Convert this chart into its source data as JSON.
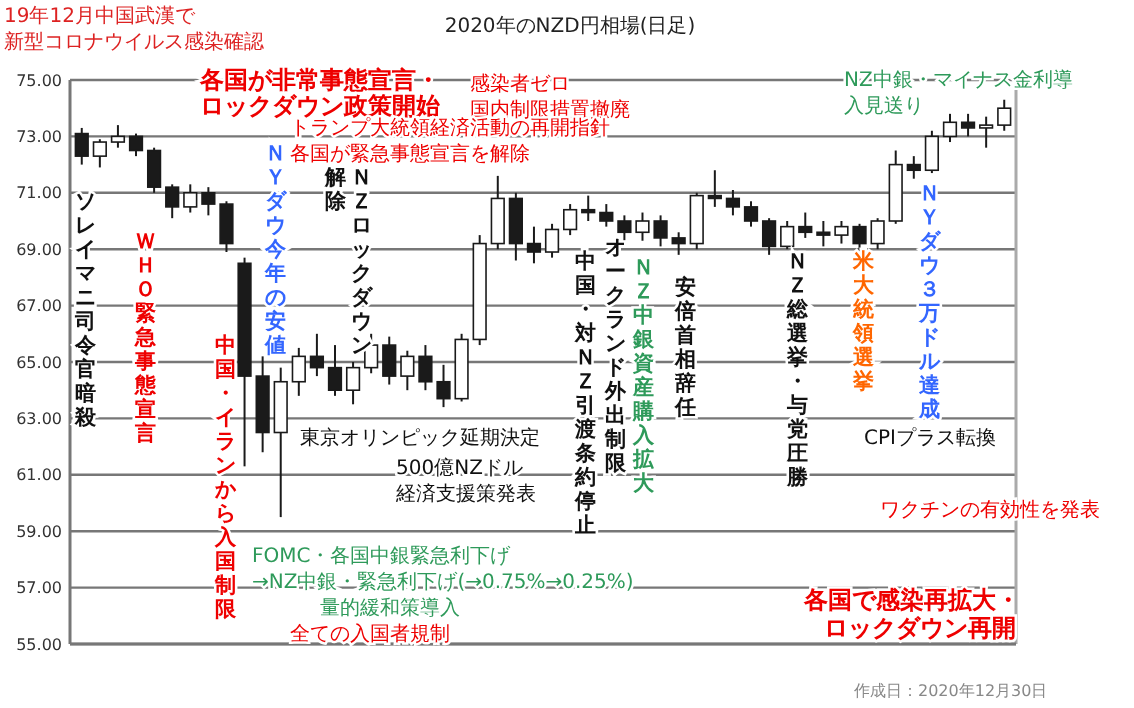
{
  "chart_data": {
    "type": "candlestick",
    "title": "2020年のNZD円相場(日足)",
    "color": "#1a1a1a",
    "grid": "y",
    "ylim": [
      55,
      75
    ],
    "yticks": [
      {
        "value": 55,
        "label": "55.00"
      },
      {
        "value": 57,
        "label": "57.00"
      },
      {
        "value": 59,
        "label": "59.00"
      },
      {
        "value": 61,
        "label": "61.00"
      },
      {
        "value": 63,
        "label": "63.00"
      },
      {
        "value": 65,
        "label": "65.00"
      },
      {
        "value": 67,
        "label": "67.00"
      },
      {
        "value": 69,
        "label": "69.00"
      },
      {
        "value": 71,
        "label": "71.00"
      },
      {
        "value": 73,
        "label": "73.00"
      },
      {
        "value": 75,
        "label": "75.00"
      }
    ],
    "categories": [
      null,
      null,
      null,
      null,
      null,
      null,
      null,
      null,
      null,
      null,
      null,
      null,
      null,
      null,
      null,
      null,
      null,
      null,
      null,
      null,
      null,
      null,
      null,
      null,
      null,
      null,
      null,
      null,
      null,
      null,
      null,
      null,
      null,
      null,
      null,
      null,
      null,
      null,
      null,
      null,
      null,
      null,
      null,
      null,
      null,
      null,
      null,
      null,
      null,
      null,
      null,
      null
    ],
    "ohlc": [
      [
        73.1,
        73.3,
        72.0,
        72.3
      ],
      [
        72.3,
        72.9,
        71.9,
        72.8
      ],
      [
        72.8,
        73.4,
        72.6,
        73.0
      ],
      [
        73.0,
        73.1,
        72.3,
        72.5
      ],
      [
        72.5,
        72.6,
        71.0,
        71.2
      ],
      [
        71.2,
        71.3,
        70.1,
        70.5
      ],
      [
        70.5,
        71.3,
        70.3,
        71.0
      ],
      [
        71.0,
        71.2,
        70.2,
        70.6
      ],
      [
        70.6,
        70.7,
        68.9,
        69.2
      ],
      [
        68.5,
        68.7,
        61.3,
        64.5
      ],
      [
        64.5,
        65.2,
        61.8,
        62.5
      ],
      [
        62.5,
        64.8,
        59.5,
        64.3
      ],
      [
        64.3,
        65.5,
        63.8,
        65.2
      ],
      [
        65.2,
        66.0,
        64.5,
        64.8
      ],
      [
        64.8,
        65.6,
        63.8,
        64.0
      ],
      [
        64.0,
        65.0,
        63.5,
        64.8
      ],
      [
        64.8,
        66.0,
        64.6,
        65.6
      ],
      [
        65.6,
        65.9,
        64.2,
        64.5
      ],
      [
        64.5,
        65.4,
        64.0,
        65.2
      ],
      [
        65.2,
        65.6,
        64.0,
        64.3
      ],
      [
        64.3,
        64.9,
        63.4,
        63.7
      ],
      [
        63.7,
        66.0,
        63.6,
        65.8
      ],
      [
        65.8,
        69.5,
        65.6,
        69.2
      ],
      [
        69.2,
        71.6,
        69.0,
        70.8
      ],
      [
        70.8,
        71.0,
        68.6,
        69.2
      ],
      [
        69.2,
        69.8,
        68.5,
        68.9
      ],
      [
        68.9,
        69.9,
        68.7,
        69.7
      ],
      [
        69.7,
        70.6,
        69.5,
        70.4
      ],
      [
        70.4,
        70.9,
        70.0,
        70.3
      ],
      [
        70.3,
        70.6,
        69.8,
        70.0
      ],
      [
        70.0,
        70.2,
        69.3,
        69.6
      ],
      [
        69.6,
        70.3,
        69.3,
        70.0
      ],
      [
        70.0,
        70.2,
        69.1,
        69.4
      ],
      [
        69.4,
        69.6,
        68.8,
        69.2
      ],
      [
        69.2,
        71.0,
        69.0,
        70.9
      ],
      [
        70.9,
        71.8,
        70.5,
        70.8
      ],
      [
        70.8,
        71.1,
        70.2,
        70.5
      ],
      [
        70.5,
        70.7,
        69.8,
        70.0
      ],
      [
        70.0,
        70.1,
        68.8,
        69.1
      ],
      [
        69.1,
        70.0,
        69.0,
        69.8
      ],
      [
        69.8,
        70.3,
        69.4,
        69.6
      ],
      [
        69.6,
        70.0,
        69.1,
        69.5
      ],
      [
        69.5,
        70.0,
        69.2,
        69.8
      ],
      [
        69.8,
        69.9,
        68.9,
        69.2
      ],
      [
        69.2,
        70.1,
        69.0,
        70.0
      ],
      [
        70.0,
        72.5,
        69.9,
        72.0
      ],
      [
        72.0,
        72.3,
        71.5,
        71.8
      ],
      [
        71.8,
        73.2,
        71.7,
        73.0
      ],
      [
        73.0,
        73.8,
        72.8,
        73.5
      ],
      [
        73.5,
        73.8,
        73.0,
        73.3
      ],
      [
        73.3,
        73.7,
        72.6,
        73.4
      ],
      [
        73.4,
        74.3,
        73.2,
        74.0
      ]
    ],
    "annotations": [
      "19年12月中国武漢で",
      "新型コロナウイルス感染確認",
      "各国が非常事態宣言・",
      "ロックダウン政策開始",
      "感染者ゼロ",
      "国内制限措置撤廃",
      "トランプ大統領経済活動の再開指針",
      "各国が緊急事態宣言を解除",
      "NZ中銀・マイナス金利導",
      "入見送り",
      "東京オリンピック延期決定",
      "500億NZドル",
      "経済支援策発表",
      "CPIプラス転換",
      "ワクチンの有効性を発表",
      "FOMC・各国中銀緊急利下げ",
      "→NZ中銀・緊急利下げ(→0.75%→0.25%)",
      "量的緩和策導入",
      "全ての入国者規制",
      "各国で感染再拡大・",
      "ロックダウン再開",
      "作成日：2020年12月30日",
      "ソレイマニ司令官暗殺",
      "ＷＨＯ緊急事態宣言",
      "中国・イランから入国制限",
      "ＮＹダウ今年の安値",
      "解除",
      "ＮＺロックダウン",
      "中国・対ＮＺ引渡条約停止",
      "オークランド外出制限",
      "ＮＺ中銀資産購入拡大",
      "安倍首相辞任",
      "ＮＺ総選挙・与党圧勝",
      "米大統領選挙",
      "ＮＹダウ３万ドル達成"
    ]
  }
}
